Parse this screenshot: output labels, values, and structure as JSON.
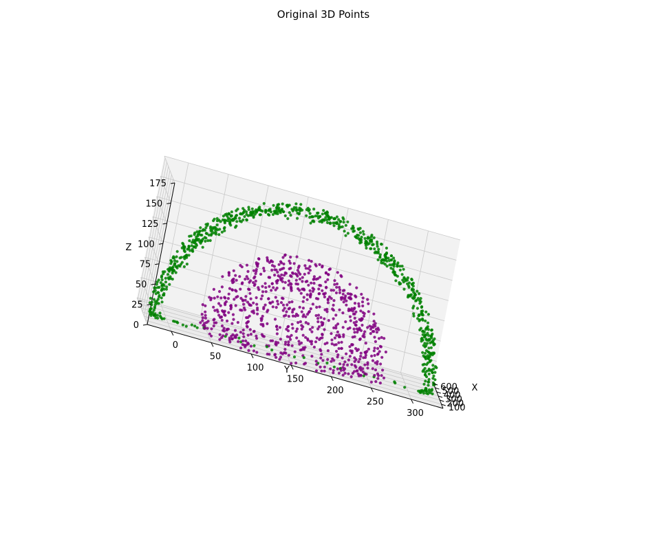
{
  "chart_data": {
    "type": "scatter",
    "projection": "3d",
    "title": "Original 3D Points",
    "xlabel": "X",
    "ylabel": "Y",
    "zlabel": "Z",
    "xlim": [
      0,
      650
    ],
    "ylim": [
      -30,
      340
    ],
    "zlim": [
      0,
      175
    ],
    "x_ticks": [
      "100",
      "200",
      "300",
      "400",
      "500",
      "600"
    ],
    "y_ticks": [
      "0",
      "50",
      "100",
      "150",
      "200",
      "250",
      "300"
    ],
    "z_ticks": [
      "0",
      "25",
      "50",
      "75",
      "100",
      "125",
      "150",
      "175"
    ],
    "grid": true,
    "series": [
      {
        "color": "#008000",
        "shape": "hemisphere-shell",
        "center": [
          300,
          155,
          0
        ],
        "radius": 175,
        "point_count": 800
      },
      {
        "color": "#800080",
        "shape": "hemisphere-solid",
        "center": [
          300,
          155,
          0
        ],
        "radius": 120,
        "point_count": 800
      }
    ]
  }
}
